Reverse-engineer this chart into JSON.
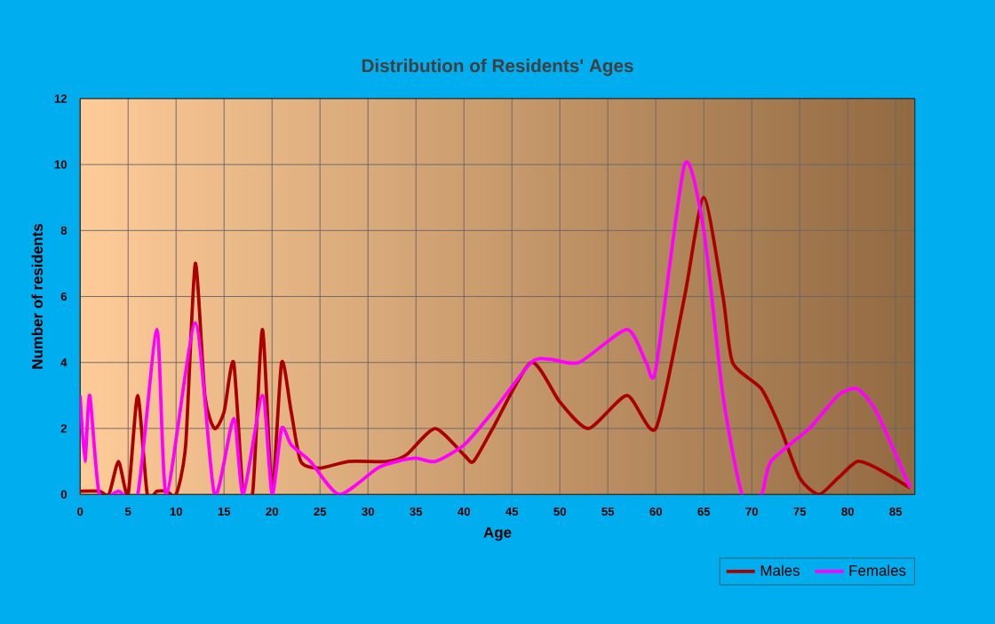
{
  "chart_data": {
    "type": "line",
    "title": "Distribution of Residents' Ages",
    "xlabel": "Age",
    "ylabel": "Number of residents",
    "xlim": [
      0,
      87
    ],
    "ylim": [
      0,
      12
    ],
    "xticks": [
      0,
      5,
      10,
      15,
      20,
      25,
      30,
      35,
      40,
      45,
      50,
      55,
      60,
      65,
      70,
      75,
      80,
      85
    ],
    "yticks": [
      0,
      2,
      4,
      6,
      8,
      10,
      12
    ],
    "grid": true,
    "legend": "bottom right",
    "marker": "none",
    "line_style": "solid",
    "series": [
      {
        "name": "Males",
        "color": "#aa0000",
        "x": [
          0,
          2,
          3,
          4,
          5,
          6,
          7,
          8,
          9,
          10,
          11,
          12,
          13,
          14,
          15,
          16,
          17,
          18,
          19,
          20,
          21,
          22,
          23,
          25,
          28,
          32,
          34,
          37,
          40,
          41,
          43,
          47,
          50,
          53,
          57,
          60,
          63,
          65,
          67,
          68,
          71,
          73,
          75,
          77,
          79,
          81,
          83,
          86.5
        ],
        "values": [
          0.1,
          0.1,
          0,
          1,
          0,
          3,
          0,
          0.1,
          0.1,
          0,
          1.5,
          7,
          3,
          2,
          2.5,
          4,
          0,
          0.1,
          5,
          0.1,
          4,
          2.5,
          1,
          0.8,
          1,
          1,
          1.2,
          2,
          1.2,
          1,
          2,
          4,
          2.8,
          2,
          3,
          2,
          6,
          9,
          6,
          4,
          3.2,
          2,
          0.5,
          0,
          0.5,
          1,
          0.8,
          0.2
        ]
      },
      {
        "name": "Females",
        "color": "#ff00ff",
        "x": [
          0,
          0.5,
          1,
          2,
          4,
          6,
          8,
          9,
          12,
          14,
          16,
          17,
          19,
          20,
          21,
          22,
          24,
          27,
          31,
          33,
          35,
          37,
          40,
          43,
          47,
          49,
          52,
          57,
          59,
          60,
          63,
          65,
          67,
          69,
          71,
          72,
          76,
          79,
          81,
          83,
          86.5
        ],
        "values": [
          3,
          1,
          3,
          0,
          0.1,
          0,
          5,
          0,
          5.2,
          0,
          2.3,
          0,
          3,
          0,
          2,
          1.5,
          1,
          0,
          0.8,
          1,
          1.1,
          1,
          1.5,
          2.5,
          4,
          4.1,
          4,
          5,
          4,
          3.8,
          10,
          8,
          3,
          0,
          0,
          1,
          2,
          3,
          3.2,
          2.5,
          0.2
        ]
      }
    ]
  }
}
